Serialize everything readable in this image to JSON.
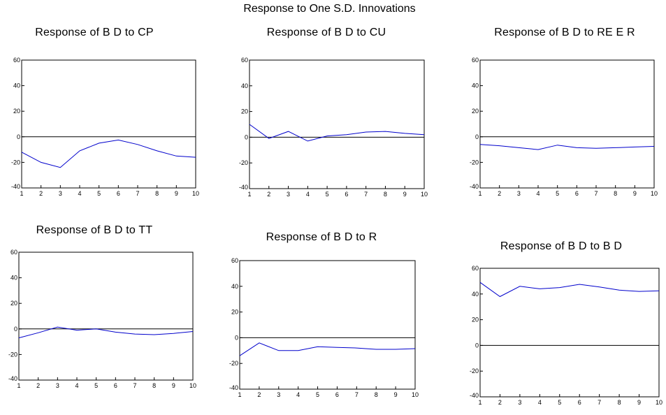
{
  "figure": {
    "title": "Response to One S.D. Innovations"
  },
  "chart_data": [
    {
      "type": "line",
      "title": "Response of B D to CP",
      "x": [
        1,
        2,
        3,
        4,
        5,
        6,
        7,
        8,
        9,
        10
      ],
      "y": [
        -12,
        -20,
        -24,
        -11,
        -5,
        -2.5,
        -6,
        -11,
        -15,
        -16
      ],
      "ylim": [
        -40,
        60
      ],
      "yticks": [
        -40,
        -20,
        0,
        20,
        40,
        60
      ],
      "xlim": [
        1,
        10
      ],
      "xlabel": "",
      "ylabel": "",
      "line_color": "#0000cc"
    },
    {
      "type": "line",
      "title": "Response of B D to CU",
      "x": [
        1,
        2,
        3,
        4,
        5,
        6,
        7,
        8,
        9,
        10
      ],
      "y": [
        10,
        -1,
        4.5,
        -3,
        1,
        2,
        4,
        4.5,
        3,
        2
      ],
      "ylim": [
        -40,
        60
      ],
      "yticks": [
        -40,
        -20,
        0,
        20,
        40,
        60
      ],
      "xlim": [
        1,
        10
      ],
      "xlabel": "",
      "ylabel": "",
      "line_color": "#0000cc"
    },
    {
      "type": "line",
      "title": "Response of B D to RE E R",
      "x": [
        1,
        2,
        3,
        4,
        5,
        6,
        7,
        8,
        9,
        10
      ],
      "y": [
        -6,
        -7,
        -8.5,
        -10,
        -6.5,
        -8.5,
        -9,
        -8.5,
        -8,
        -7.5
      ],
      "ylim": [
        -40,
        60
      ],
      "yticks": [
        -40,
        -20,
        0,
        20,
        40,
        60
      ],
      "xlim": [
        1,
        10
      ],
      "xlabel": "",
      "ylabel": "",
      "line_color": "#0000cc"
    },
    {
      "type": "line",
      "title": "Response of B D to TT",
      "x": [
        1,
        2,
        3,
        4,
        5,
        6,
        7,
        8,
        9,
        10
      ],
      "y": [
        -7,
        -3,
        1.5,
        -1,
        0,
        -2.5,
        -4,
        -4.5,
        -3.5,
        -2
      ],
      "ylim": [
        -40,
        60
      ],
      "yticks": [
        -40,
        -20,
        0,
        20,
        40,
        60
      ],
      "xlim": [
        1,
        10
      ],
      "xlabel": "",
      "ylabel": "",
      "line_color": "#0000cc"
    },
    {
      "type": "line",
      "title": "Response of B D to R",
      "x": [
        1,
        2,
        3,
        4,
        5,
        6,
        7,
        8,
        9,
        10
      ],
      "y": [
        -14,
        -4,
        -10,
        -10,
        -7,
        -7.5,
        -8,
        -9,
        -9,
        -8.5
      ],
      "ylim": [
        -40,
        60
      ],
      "yticks": [
        -40,
        -20,
        0,
        20,
        40,
        60
      ],
      "xlim": [
        1,
        10
      ],
      "xlabel": "",
      "ylabel": "",
      "line_color": "#0000cc"
    },
    {
      "type": "line",
      "title": "Response of B D to B D",
      "x": [
        1,
        2,
        3,
        4,
        5,
        6,
        7,
        8,
        9,
        10
      ],
      "y": [
        49,
        38,
        46,
        44,
        45,
        47.5,
        45.5,
        43,
        42,
        42.5
      ],
      "ylim": [
        -40,
        60
      ],
      "yticks": [
        -40,
        -20,
        0,
        20,
        40,
        60
      ],
      "xlim": [
        1,
        10
      ],
      "xlabel": "",
      "ylabel": "",
      "line_color": "#0000cc"
    }
  ]
}
